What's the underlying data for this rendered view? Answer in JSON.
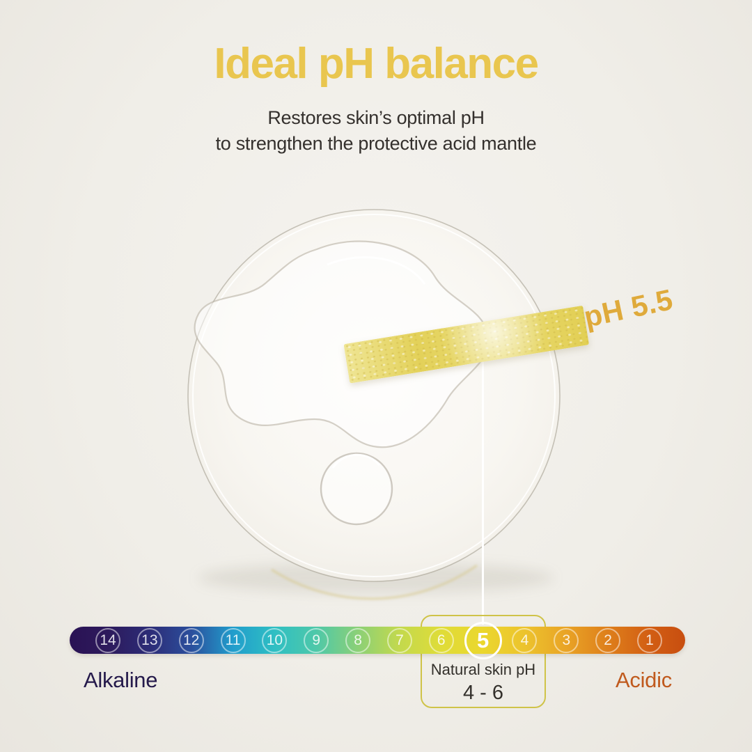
{
  "colors": {
    "background": "#F0EEE8",
    "title": "#E9C64F",
    "subtitle_text": "#34302D",
    "ph_label": "#DFAA3B",
    "alkaline_text": "#251A4B",
    "acidic_text": "#C05A1E",
    "callout_border": "#CFC348",
    "natural_text": "#33302B",
    "strip_yellow": "#E3D159"
  },
  "header": {
    "title": "Ideal pH balance",
    "subtitle_line1": "Restores skin’s optimal pH",
    "subtitle_line2": "to strengthen the protective acid mantle"
  },
  "specimen": {
    "ph_reading_label": "pH 5.5"
  },
  "ph_scale": {
    "numbers": [
      14,
      13,
      12,
      11,
      10,
      9,
      8,
      7,
      6,
      5,
      4,
      3,
      2,
      1
    ],
    "highlighted_number": 5,
    "left_label": "Alkaline",
    "right_label": "Acidic",
    "callout_title": "Natural skin pH",
    "callout_range": "4 - 6",
    "gradient": [
      {
        "pos": 0,
        "color": "#2A1254"
      },
      {
        "pos": 6.2,
        "color": "#2D1A5C"
      },
      {
        "pos": 13,
        "color": "#2C2C77"
      },
      {
        "pos": 19.7,
        "color": "#2B4E9C"
      },
      {
        "pos": 26.5,
        "color": "#219DCC"
      },
      {
        "pos": 33.3,
        "color": "#2FBFC3"
      },
      {
        "pos": 40,
        "color": "#4EC8A9"
      },
      {
        "pos": 46.8,
        "color": "#8BD077"
      },
      {
        "pos": 53.6,
        "color": "#C3D94D"
      },
      {
        "pos": 60.3,
        "color": "#DFDC38"
      },
      {
        "pos": 67.1,
        "color": "#EBD72E"
      },
      {
        "pos": 74,
        "color": "#ECC32D"
      },
      {
        "pos": 80.6,
        "color": "#E9A426"
      },
      {
        "pos": 87.4,
        "color": "#DE7F1B"
      },
      {
        "pos": 94.2,
        "color": "#D25E13"
      },
      {
        "pos": 100,
        "color": "#C84E10"
      }
    ]
  }
}
